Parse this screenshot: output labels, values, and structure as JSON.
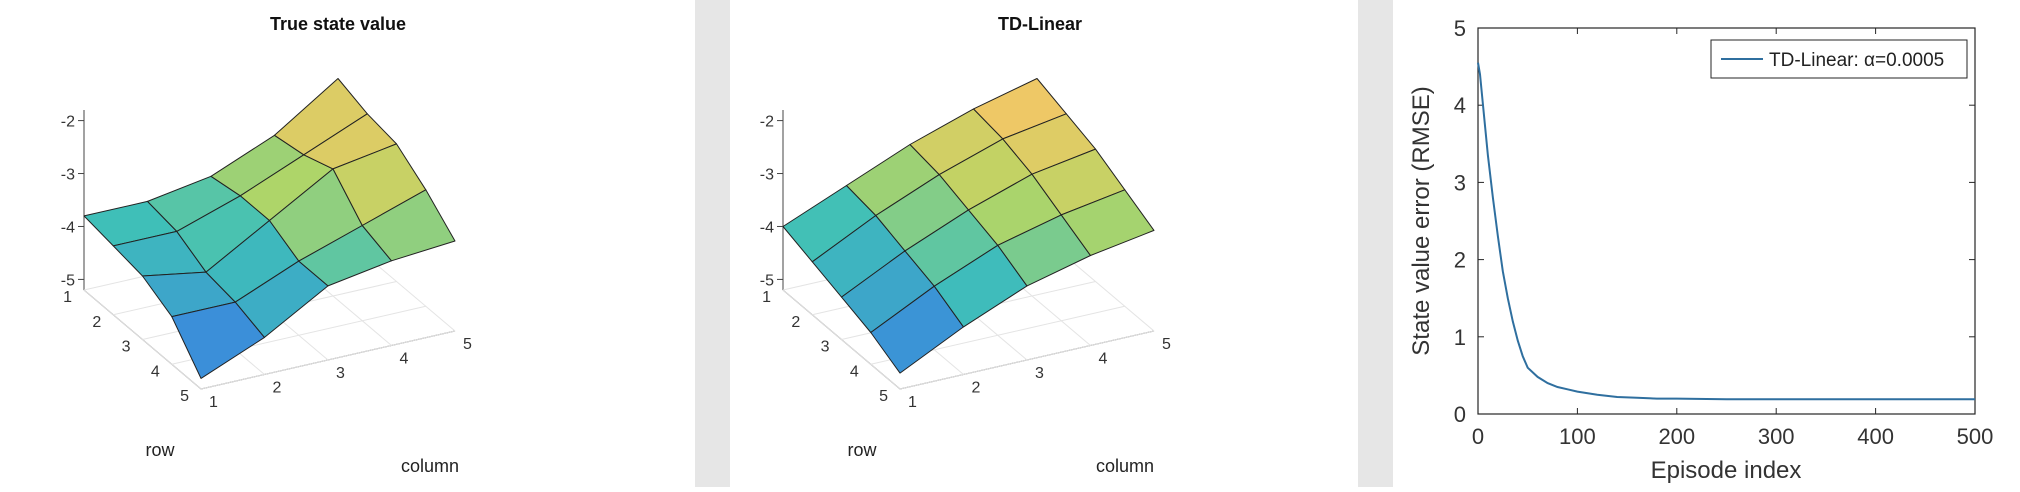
{
  "colors": {
    "background": "#ffffff",
    "gutter": "#e6e6e6",
    "line": "#2f6f9f",
    "colormap": [
      "#7c55c4",
      "#3b8fd9",
      "#3fc0b8",
      "#b5d664",
      "#f2c766",
      "#f2ea60"
    ]
  },
  "chart_data": [
    {
      "type": "surface",
      "title": "True state value",
      "xlabel": "column",
      "ylabel": "row",
      "x_ticks": [
        "1",
        "2",
        "3",
        "4",
        "5"
      ],
      "y_ticks": [
        "1",
        "2",
        "3",
        "4",
        "5"
      ],
      "z_ticks": [
        "-2",
        "-3",
        "-4",
        "-5"
      ],
      "zlim": [
        -5.2,
        -1.8
      ],
      "z": [
        [
          -3.8,
          -3.8,
          -3.6,
          -3.1,
          -2.3
        ],
        [
          -3.9,
          -3.9,
          -3.5,
          -3.0,
          -2.5
        ],
        [
          -4.0,
          -4.2,
          -3.5,
          -2.8,
          -2.6
        ],
        [
          -4.3,
          -4.3,
          -3.8,
          -3.4,
          -3.0
        ],
        [
          -5.0,
          -4.5,
          -3.8,
          -3.6,
          -3.5
        ]
      ]
    },
    {
      "type": "surface",
      "title": "TD-Linear",
      "xlabel": "column",
      "ylabel": "row",
      "x_ticks": [
        "1",
        "2",
        "3",
        "4",
        "5"
      ],
      "y_ticks": [
        "1",
        "2",
        "3",
        "4",
        "5"
      ],
      "z_ticks": [
        "-2",
        "-3",
        "-4",
        "-5"
      ],
      "zlim": [
        -5.2,
        -1.8
      ],
      "z": [
        [
          -4.0,
          -3.5,
          -3.0,
          -2.6,
          -2.3
        ],
        [
          -4.2,
          -3.6,
          -3.1,
          -2.7,
          -2.5
        ],
        [
          -4.4,
          -3.8,
          -3.3,
          -2.9,
          -2.7
        ],
        [
          -4.6,
          -4.0,
          -3.5,
          -3.2,
          -3.0
        ],
        [
          -4.9,
          -4.3,
          -3.8,
          -3.5,
          -3.3
        ]
      ]
    },
    {
      "type": "line",
      "title": "",
      "xlabel": "Episode index",
      "ylabel": "State value error (RMSE)",
      "xlim": [
        0,
        500
      ],
      "ylim": [
        0,
        5
      ],
      "x_ticks": [
        0,
        100,
        200,
        300,
        400,
        500
      ],
      "y_ticks": [
        0,
        1,
        2,
        3,
        4,
        5
      ],
      "legend_position": "top-right",
      "series": [
        {
          "name": "TD-Linear: α=0.0005",
          "x": [
            0,
            2,
            5,
            10,
            15,
            20,
            25,
            30,
            35,
            40,
            45,
            50,
            60,
            70,
            80,
            90,
            100,
            120,
            140,
            160,
            180,
            200,
            250,
            300,
            350,
            400,
            450,
            500
          ],
          "y": [
            4.55,
            4.4,
            4.0,
            3.35,
            2.8,
            2.3,
            1.85,
            1.5,
            1.2,
            0.95,
            0.75,
            0.6,
            0.48,
            0.4,
            0.35,
            0.32,
            0.29,
            0.25,
            0.22,
            0.21,
            0.2,
            0.2,
            0.19,
            0.19,
            0.19,
            0.19,
            0.19,
            0.19
          ]
        }
      ]
    }
  ]
}
